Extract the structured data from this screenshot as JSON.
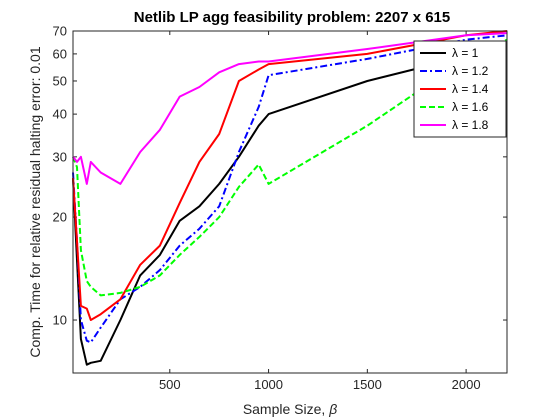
{
  "chart_data": {
    "type": "line",
    "title": "Netlib LP agg feasibility problem: 2207 x 615",
    "xlabel_prefix": "Sample Size, ",
    "xlabel_symbol": "β",
    "ylabel": "Comp. Time for relative residual halting error: 0.01",
    "y_scale": "log",
    "xlim": [
      10,
      2207
    ],
    "ylim": [
      7,
      70
    ],
    "x_ticks": [
      500,
      1000,
      1500,
      2000
    ],
    "y_ticks": [
      10,
      20,
      30,
      40,
      50,
      60,
      70
    ],
    "legend_position": "top-right",
    "series": [
      {
        "name": "λ = 1",
        "color": "#000000",
        "dash": "solid",
        "x": [
          10,
          30,
          50,
          80,
          100,
          150,
          250,
          350,
          450,
          550,
          650,
          750,
          850,
          950,
          1000,
          1500,
          2000,
          2207
        ],
        "y": [
          26,
          15,
          8.8,
          7.4,
          7.5,
          7.6,
          10,
          13.5,
          15.5,
          19.5,
          21.5,
          25,
          30,
          37,
          40,
          50,
          59,
          62
        ]
      },
      {
        "name": "λ = 1.2",
        "color": "#0000ff",
        "dash": "dashdot",
        "x": [
          10,
          30,
          50,
          80,
          100,
          150,
          250,
          350,
          450,
          550,
          650,
          750,
          850,
          950,
          1000,
          1500,
          2000,
          2207
        ],
        "y": [
          27,
          17,
          10,
          8.7,
          8.6,
          9.5,
          11.5,
          12.5,
          14,
          16.5,
          18.5,
          21.5,
          31,
          42,
          52,
          58,
          66,
          68
        ]
      },
      {
        "name": "λ = 1.4",
        "color": "#ff0000",
        "dash": "solid",
        "x": [
          10,
          30,
          50,
          80,
          100,
          150,
          250,
          350,
          450,
          550,
          650,
          750,
          850,
          950,
          1000,
          1500,
          2000,
          2207
        ],
        "y": [
          26,
          17,
          11,
          10.8,
          10,
          10.4,
          11.5,
          14.5,
          16.5,
          22,
          29,
          35,
          50,
          54,
          56,
          60,
          68,
          70
        ]
      },
      {
        "name": "λ = 1.6",
        "color": "#00ff00",
        "dash": "dashed",
        "x": [
          10,
          30,
          50,
          80,
          100,
          150,
          250,
          350,
          450,
          550,
          650,
          750,
          850,
          950,
          1000,
          1500,
          2000,
          2207
        ],
        "y": [
          30,
          28,
          16,
          13,
          12.5,
          11.8,
          12,
          12.5,
          13.5,
          15.5,
          17.5,
          20,
          24.5,
          28.5,
          25,
          37,
          58,
          66
        ]
      },
      {
        "name": "λ = 1.8",
        "color": "#ff00ff",
        "dash": "solid",
        "x": [
          10,
          30,
          50,
          80,
          100,
          150,
          250,
          350,
          450,
          550,
          650,
          750,
          850,
          950,
          1000,
          1500,
          2000,
          2207
        ],
        "y": [
          30,
          29,
          30,
          25,
          29,
          27,
          25,
          31,
          36,
          45,
          48,
          53,
          56,
          57,
          57,
          62,
          68,
          69
        ]
      }
    ]
  }
}
